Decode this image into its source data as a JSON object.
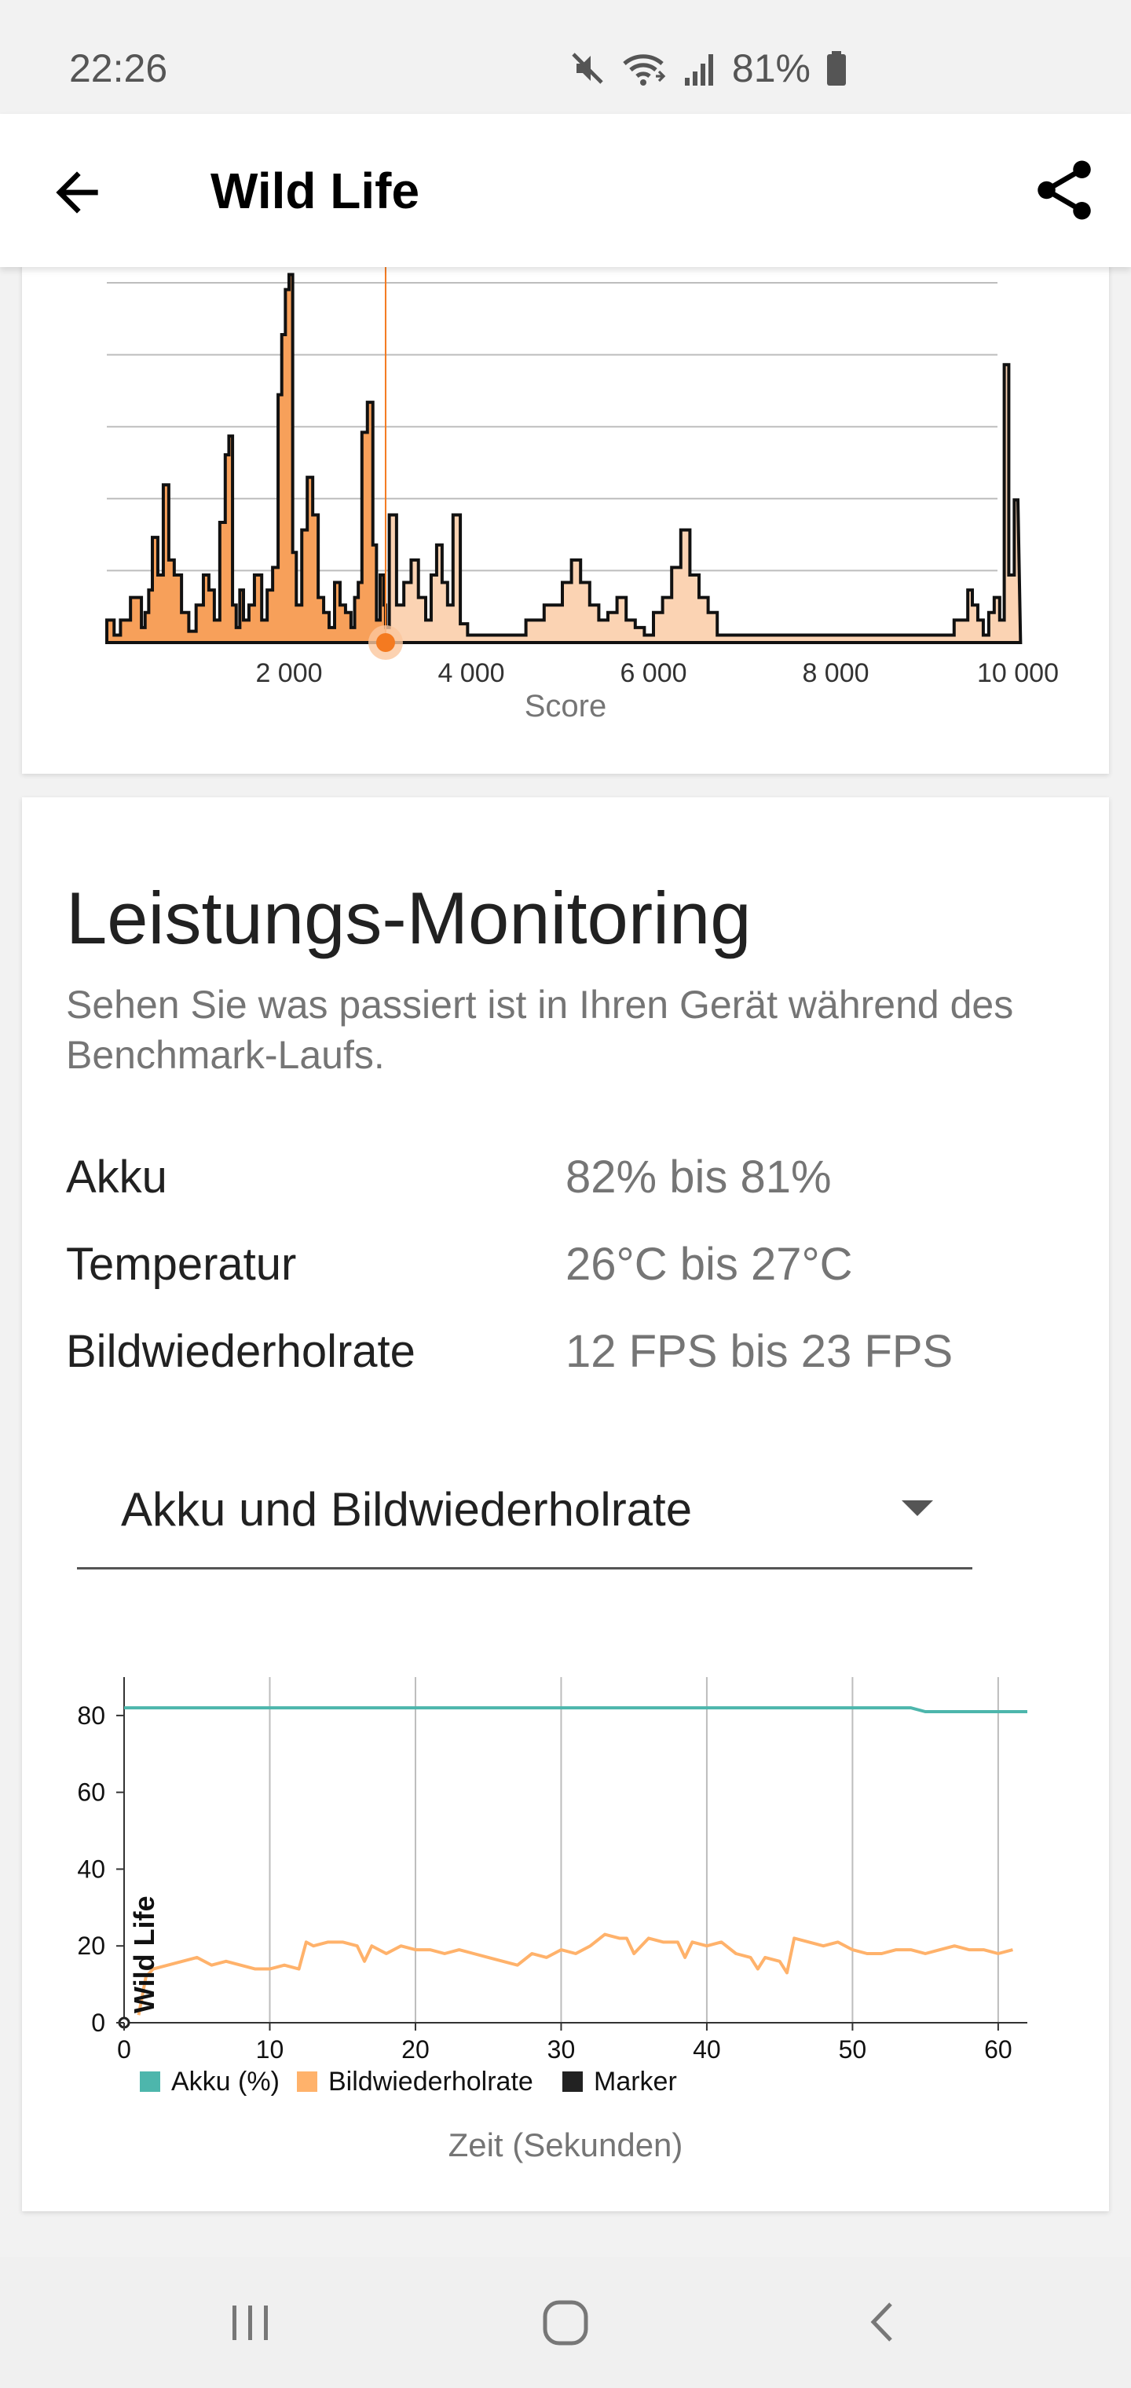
{
  "status_bar": {
    "time": "22:26",
    "battery_percent": "81%",
    "icons": [
      "mute-icon",
      "wifi-icon",
      "signal-icon",
      "battery-icon"
    ]
  },
  "app_bar": {
    "title": "Wild Life",
    "back_icon": "arrow-left-icon",
    "share_icon": "share-icon"
  },
  "histogram": {
    "xlabel": "Score",
    "tick_labels": [
      "2 000",
      "4 000",
      "6 000",
      "8 000",
      "10 000"
    ],
    "colors": {
      "fill": "#f7a05a",
      "fill_light": "#fbd3b3",
      "outline": "#111111",
      "marker": "#f47a20"
    },
    "chart_data": {
      "type": "area",
      "xlabel": "Score",
      "xlim": [
        0,
        10000
      ],
      "marker_score": 3060,
      "series": [
        {
          "x": [
            0,
            80,
            150,
            260,
            380,
            420,
            460,
            500,
            560,
            620,
            680,
            740,
            820,
            900,
            980,
            1060,
            1120,
            1180,
            1240,
            1300,
            1340,
            1380,
            1420,
            1460,
            1500,
            1560,
            1620,
            1700,
            1760,
            1820,
            1880,
            1920,
            1960,
            2000,
            2040,
            2080,
            2140,
            2200,
            2260,
            2320,
            2380,
            2440,
            2500,
            2560,
            2620,
            2680,
            2720,
            2760,
            2800,
            2860,
            2920,
            2960,
            3000,
            3040,
            3060,
            3100,
            3180,
            3260,
            3340,
            3420,
            3500,
            3560,
            3620,
            3680,
            3740,
            3800,
            3880,
            3960,
            4100,
            4400,
            4600,
            4800,
            5000,
            5100,
            5200,
            5300,
            5400,
            5500,
            5600,
            5700,
            5800,
            5900,
            6000,
            6100,
            6200,
            6300,
            6400,
            6500,
            6600,
            6700,
            6800,
            6900,
            6960,
            7020,
            7080,
            7140,
            7200,
            7300,
            7500,
            8000,
            9000,
            9300,
            9450,
            9500,
            9560,
            9620,
            9680,
            9740,
            9800,
            9850,
            9900,
            9960
          ],
          "y": [
            0.06,
            0.02,
            0.06,
            0.12,
            0.04,
            0.08,
            0.14,
            0.28,
            0.18,
            0.42,
            0.22,
            0.18,
            0.08,
            0.03,
            0.1,
            0.18,
            0.14,
            0.06,
            0.32,
            0.5,
            0.55,
            0.1,
            0.04,
            0.14,
            0.06,
            0.1,
            0.18,
            0.06,
            0.14,
            0.2,
            0.66,
            0.82,
            0.94,
            0.98,
            0.24,
            0.1,
            0.3,
            0.44,
            0.34,
            0.12,
            0.08,
            0.04,
            0.16,
            0.1,
            0.08,
            0.04,
            0.12,
            0.16,
            0.56,
            0.64,
            0.26,
            0.06,
            0.18,
            0.1,
            0.04,
            0.34,
            0.1,
            0.16,
            0.22,
            0.12,
            0.06,
            0.18,
            0.26,
            0.16,
            0.1,
            0.34,
            0.05,
            0.02,
            0.02,
            0.02,
            0.06,
            0.1,
            0.16,
            0.22,
            0.16,
            0.1,
            0.06,
            0.08,
            0.12,
            0.06,
            0.04,
            0.02,
            0.08,
            0.12,
            0.2,
            0.3,
            0.18,
            0.12,
            0.08,
            0.02,
            0.02,
            0.02,
            0.02,
            0.02,
            0.02,
            0.02,
            0.02,
            0.02,
            0.02,
            0.02,
            0.02,
            0.06,
            0.14,
            0.1,
            0.06,
            0.02,
            0.08,
            0.12,
            0.06,
            0.74,
            0.18,
            0.38
          ]
        }
      ]
    }
  },
  "monitoring": {
    "title": "Leistungs-Monitoring",
    "subtitle": "Sehen Sie was passiert ist in Ihren Gerät während des Benchmark-Laufs.",
    "stats": [
      {
        "label": "Akku",
        "value": "82% bis 81%"
      },
      {
        "label": "Temperatur",
        "value": "26°C bis 27°C"
      },
      {
        "label": "Bildwiederholrate",
        "value": "12 FPS bis 23 FPS"
      }
    ],
    "dropdown": {
      "selected": "Akku und Bildwiederholrate",
      "icon": "caret-down-icon"
    }
  },
  "line_chart": {
    "xlabel": "Zeit (Sekunden)",
    "marker_label": "Wild Life",
    "legend": [
      {
        "label": "Akku (%)",
        "color": "#4db6ac"
      },
      {
        "label": "Bildwiederholrate",
        "color": "#ffb26b"
      },
      {
        "label": "Marker",
        "color": "#222222"
      }
    ],
    "chart_data": {
      "type": "line",
      "xlabel": "Zeit (Sekunden)",
      "xlim": [
        0,
        62
      ],
      "ylim": [
        0,
        90
      ],
      "xticks": [
        0,
        10,
        20,
        30,
        40,
        50,
        60
      ],
      "yticks": [
        0,
        20,
        40,
        60,
        80
      ],
      "grid": "vertical",
      "legend_position": "bottom",
      "marker_x": 1.4,
      "series": [
        {
          "name": "Akku (%)",
          "x": [
            0,
            54,
            55,
            62
          ],
          "y": [
            82,
            82,
            81,
            81
          ]
        },
        {
          "name": "Bildwiederholrate",
          "x": [
            1,
            1.5,
            2,
            3,
            4,
            5,
            6,
            7,
            8,
            9,
            10,
            11,
            12,
            12.5,
            13,
            14,
            15,
            16,
            16.5,
            17,
            18,
            19,
            20,
            21,
            22,
            23,
            24,
            25,
            26,
            27,
            28,
            29,
            30,
            31,
            32,
            33,
            34,
            34.5,
            35,
            36,
            37,
            38,
            38.5,
            39,
            40,
            41,
            42,
            43,
            43.5,
            44,
            45,
            45.5,
            46,
            47,
            48,
            49,
            50,
            51,
            52,
            53,
            54,
            55,
            56,
            57,
            58,
            59,
            60,
            61
          ],
          "y": [
            2,
            12,
            14,
            15,
            16,
            17,
            15,
            16,
            15,
            14,
            14,
            15,
            14,
            21,
            20,
            21,
            21,
            20,
            16,
            20,
            18,
            20,
            19,
            19,
            18,
            19,
            18,
            17,
            16,
            15,
            18,
            17,
            19,
            18,
            20,
            23,
            22,
            22,
            18,
            22,
            21,
            21,
            17,
            21,
            20,
            21,
            18,
            17,
            14,
            17,
            16,
            13,
            22,
            21,
            20,
            21,
            19,
            18,
            18,
            19,
            19,
            18,
            19,
            20,
            19,
            19,
            18,
            19
          ]
        }
      ]
    }
  }
}
